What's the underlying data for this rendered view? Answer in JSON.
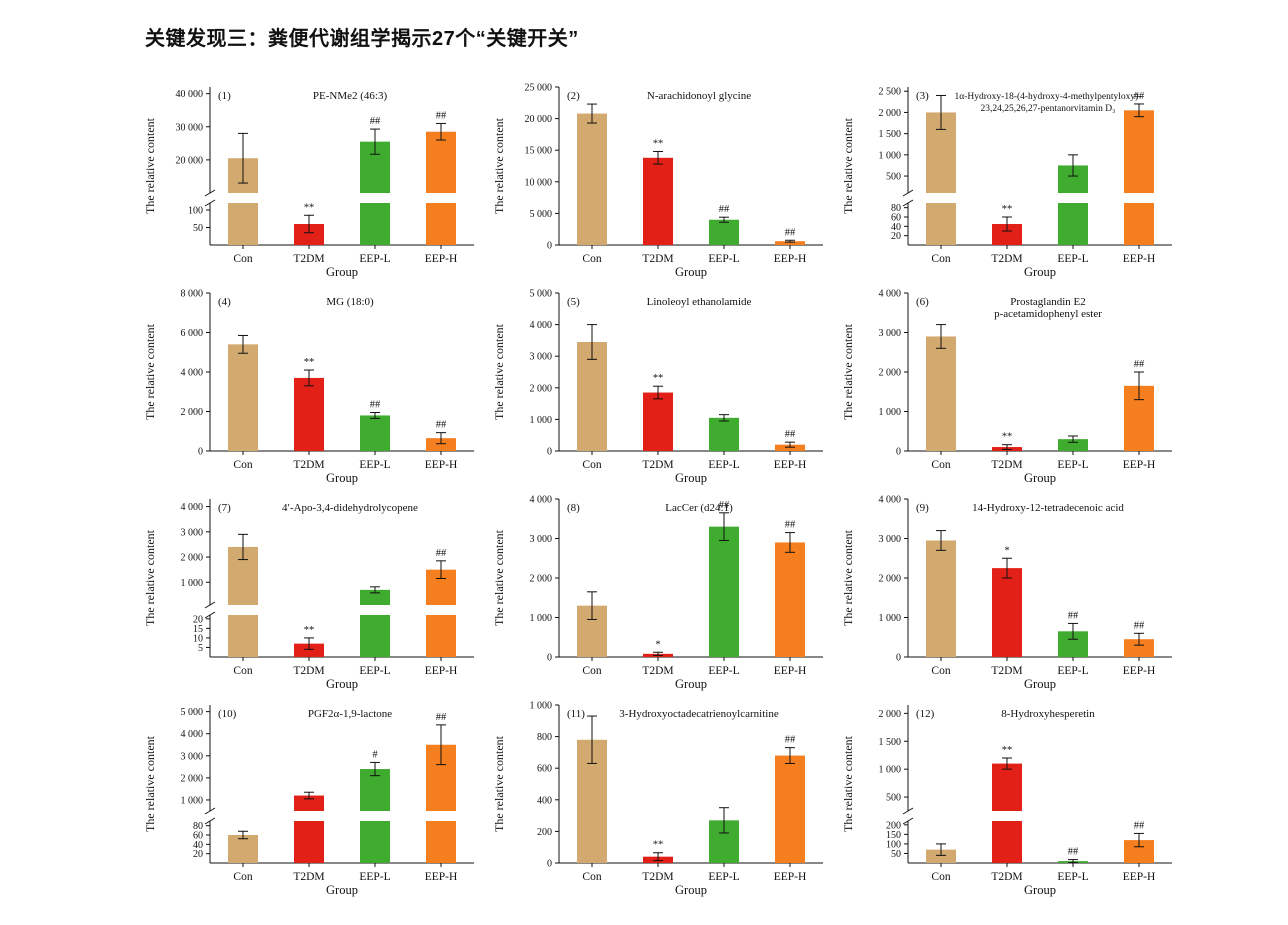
{
  "header": {
    "title": "关键发现三：粪便代谢组学揭示27个“关键开关”"
  },
  "palette": {
    "Con": "#d2a96f",
    "T2DM": "#e32017",
    "EEP-L": "#3fab2f",
    "EEP-H": "#f57e1f",
    "error": "#111111",
    "axis": "#111111"
  },
  "axes": {
    "ylabel": "The relative content",
    "xlabel": "Group"
  },
  "groups": [
    "Con",
    "T2DM",
    "EEP-L",
    "EEP-H"
  ],
  "chart_data": [
    {
      "index": "(1)",
      "title": "PE-NMe2 (46:3)",
      "type": "bar",
      "categories": [
        "Con",
        "T2DM",
        "EEP-L",
        "EEP-H"
      ],
      "values": [
        20500,
        60,
        25500,
        28500
      ],
      "errors": [
        7500,
        25,
        3800,
        2500
      ],
      "sig": [
        "",
        "**",
        "##",
        "##"
      ],
      "xlabel": "Group",
      "ylabel": "The relative content",
      "axis_break": true,
      "lower": {
        "max": 120,
        "ticks": [
          50,
          100
        ]
      },
      "upper": {
        "min": 10000,
        "max": 42000,
        "ticks": [
          20000,
          30000,
          40000
        ]
      }
    },
    {
      "index": "(2)",
      "title": "N-arachidonoyl glycine",
      "type": "bar",
      "categories": [
        "Con",
        "T2DM",
        "EEP-L",
        "EEP-H"
      ],
      "values": [
        20800,
        13800,
        4000,
        600
      ],
      "errors": [
        1500,
        1000,
        400,
        150
      ],
      "sig": [
        "",
        "**",
        "##",
        "##"
      ],
      "xlabel": "Group",
      "ylabel": "The relative content",
      "axis_break": false,
      "ylim": [
        0,
        25000
      ],
      "ticks": [
        0,
        5000,
        10000,
        15000,
        20000,
        25000
      ]
    },
    {
      "index": "(3)",
      "title": "1α-Hydroxy-18-(4-hydroxy-4-methylpentyloxy)-",
      "title2": "23,24,25,26,27-pentanorvitamin D₃",
      "type": "bar",
      "categories": [
        "Con",
        "T2DM",
        "EEP-L",
        "EEP-H"
      ],
      "values": [
        2000,
        45,
        750,
        2050
      ],
      "errors": [
        400,
        15,
        250,
        150
      ],
      "sig": [
        "",
        "**",
        "",
        "##"
      ],
      "xlabel": "Group",
      "ylabel": "The relative content",
      "axis_break": true,
      "lower": {
        "max": 90,
        "ticks": [
          20,
          40,
          60,
          80
        ]
      },
      "upper": {
        "min": 100,
        "max": 2600,
        "ticks": [
          500,
          1000,
          1500,
          2000,
          2500
        ]
      }
    },
    {
      "index": "(4)",
      "title": "MG (18:0)",
      "type": "bar",
      "categories": [
        "Con",
        "T2DM",
        "EEP-L",
        "EEP-H"
      ],
      "values": [
        5400,
        3700,
        1800,
        650
      ],
      "errors": [
        450,
        400,
        150,
        280
      ],
      "sig": [
        "",
        "**",
        "##",
        "##"
      ],
      "xlabel": "Group",
      "ylabel": "The relative content",
      "axis_break": false,
      "ylim": [
        0,
        8000
      ],
      "ticks": [
        0,
        2000,
        4000,
        6000,
        8000
      ]
    },
    {
      "index": "(5)",
      "title": "Linoleoyl ethanolamide",
      "type": "bar",
      "categories": [
        "Con",
        "T2DM",
        "EEP-L",
        "EEP-H"
      ],
      "values": [
        3450,
        1850,
        1050,
        200
      ],
      "errors": [
        550,
        200,
        100,
        80
      ],
      "sig": [
        "",
        "**",
        "",
        "##"
      ],
      "xlabel": "Group",
      "ylabel": "The relative content",
      "axis_break": false,
      "ylim": [
        0,
        5000
      ],
      "ticks": [
        0,
        1000,
        2000,
        3000,
        4000,
        5000
      ]
    },
    {
      "index": "(6)",
      "title": "Prostaglandin E2",
      "title2": "p-acetamidophenyl ester",
      "type": "bar",
      "categories": [
        "Con",
        "T2DM",
        "EEP-L",
        "EEP-H"
      ],
      "values": [
        2900,
        100,
        300,
        1650
      ],
      "errors": [
        300,
        60,
        80,
        350
      ],
      "sig": [
        "",
        "**",
        "",
        "##"
      ],
      "xlabel": "Group",
      "ylabel": "The relative content",
      "axis_break": false,
      "ylim": [
        0,
        4000
      ],
      "ticks": [
        0,
        1000,
        2000,
        3000,
        4000
      ]
    },
    {
      "index": "(7)",
      "title": "4′-Apo-3,4-didehydrolycopene",
      "type": "bar",
      "categories": [
        "Con",
        "T2DM",
        "EEP-L",
        "EEP-H"
      ],
      "values": [
        2400,
        7,
        700,
        1500
      ],
      "errors": [
        500,
        3,
        120,
        350
      ],
      "sig": [
        "",
        "**",
        "",
        "##"
      ],
      "xlabel": "Group",
      "ylabel": "The relative content",
      "axis_break": true,
      "lower": {
        "max": 22,
        "ticks": [
          5,
          10,
          15,
          20
        ]
      },
      "upper": {
        "min": 100,
        "max": 4300,
        "ticks": [
          1000,
          2000,
          3000,
          4000
        ]
      }
    },
    {
      "index": "(8)",
      "title": "LacCer (d24:1)",
      "type": "bar",
      "categories": [
        "Con",
        "T2DM",
        "EEP-L",
        "EEP-H"
      ],
      "values": [
        1300,
        80,
        3300,
        2900
      ],
      "errors": [
        350,
        40,
        350,
        250
      ],
      "sig": [
        "",
        "*",
        "##",
        "##"
      ],
      "xlabel": "Group",
      "ylabel": "The relative content",
      "axis_break": false,
      "ylim": [
        0,
        4000
      ],
      "ticks": [
        0,
        1000,
        2000,
        3000,
        4000
      ]
    },
    {
      "index": "(9)",
      "title": "14-Hydroxy-12-tetradecenoic acid",
      "type": "bar",
      "categories": [
        "Con",
        "T2DM",
        "EEP-L",
        "EEP-H"
      ],
      "values": [
        2950,
        2250,
        650,
        450
      ],
      "errors": [
        250,
        250,
        200,
        150
      ],
      "sig": [
        "",
        "*",
        "##",
        "##"
      ],
      "xlabel": "Group",
      "ylabel": "The relative content",
      "axis_break": false,
      "ylim": [
        0,
        4000
      ],
      "ticks": [
        0,
        1000,
        2000,
        3000,
        4000
      ]
    },
    {
      "index": "(10)",
      "title": "PGF2α-1,9-lactone",
      "type": "bar",
      "categories": [
        "Con",
        "T2DM",
        "EEP-L",
        "EEP-H"
      ],
      "values": [
        60,
        1200,
        2400,
        3500
      ],
      "errors": [
        8,
        150,
        300,
        900
      ],
      "sig": [
        "",
        "",
        "#",
        "##"
      ],
      "xlabel": "Group",
      "ylabel": "The relative content",
      "axis_break": true,
      "lower": {
        "max": 90,
        "ticks": [
          20,
          40,
          60,
          80
        ]
      },
      "upper": {
        "min": 500,
        "max": 5300,
        "ticks": [
          1000,
          2000,
          3000,
          4000,
          5000
        ]
      }
    },
    {
      "index": "(11)",
      "title": "3-Hydroxyoctadecatrienoylcarnitine",
      "type": "bar",
      "categories": [
        "Con",
        "T2DM",
        "EEP-L",
        "EEP-H"
      ],
      "values": [
        780,
        40,
        270,
        680
      ],
      "errors": [
        150,
        25,
        80,
        50
      ],
      "sig": [
        "",
        "**",
        "",
        "##"
      ],
      "xlabel": "Group",
      "ylabel": "The relative content",
      "axis_break": false,
      "ylim": [
        0,
        1000
      ],
      "ticks": [
        0,
        200,
        400,
        600,
        800,
        1000
      ]
    },
    {
      "index": "(12)",
      "title": "8-Hydroxyhesperetin",
      "type": "bar",
      "categories": [
        "Con",
        "T2DM",
        "EEP-L",
        "EEP-H"
      ],
      "values": [
        70,
        1100,
        10,
        120
      ],
      "errors": [
        30,
        100,
        8,
        35
      ],
      "sig": [
        "",
        "**",
        "##",
        "##"
      ],
      "xlabel": "Group",
      "ylabel": "The relative content",
      "axis_break": true,
      "lower": {
        "max": 220,
        "ticks": [
          50,
          100,
          150,
          200
        ]
      },
      "upper": {
        "min": 250,
        "max": 2150,
        "ticks": [
          500,
          1000,
          1500,
          2000
        ]
      }
    }
  ]
}
